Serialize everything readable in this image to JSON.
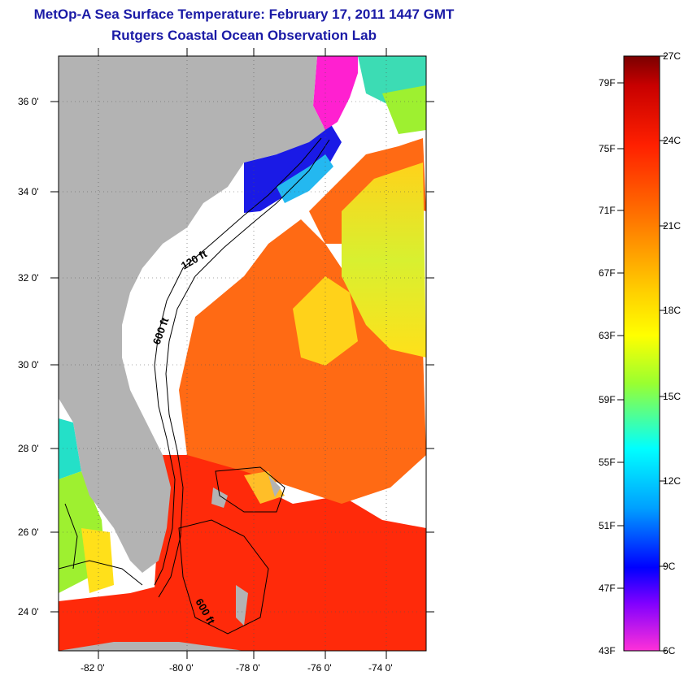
{
  "title": {
    "line1": "MetOp-A Sea Surface Temperature:  February 17, 2011 1447 GMT",
    "line2": "Rutgers Coastal Ocean Observation Lab"
  },
  "map": {
    "lat_labels": [
      "36 0'",
      "34 0'",
      "32 0'",
      "30 0'",
      "28 0'",
      "26 0'",
      "24 0'"
    ],
    "lon_labels": [
      "-82 0'",
      "-80 0'",
      "-78 0'",
      "-76 0'",
      "-74 0'"
    ],
    "contour_labels": {
      "a": "120 ft",
      "b": "600 ft",
      "c": "600 ft"
    },
    "colors": {
      "land": "#b3b3b3",
      "cloud": "#ffffff",
      "warm": "#ff2a0a",
      "orange": "#ff6a14",
      "yellow": "#ffe01a",
      "green": "#9ef030",
      "cyan": "#24e0c8",
      "blue": "#1a1ae6",
      "magenta": "#ff20d0"
    }
  },
  "colorbar": {
    "fahrenheit": [
      "79F",
      "75F",
      "71F",
      "67F",
      "63F",
      "59F",
      "55F",
      "51F",
      "47F",
      "43F"
    ],
    "celsius": [
      "27C",
      "24C",
      "21C",
      "18C",
      "15C",
      "12C",
      "9C",
      "6C"
    ]
  }
}
